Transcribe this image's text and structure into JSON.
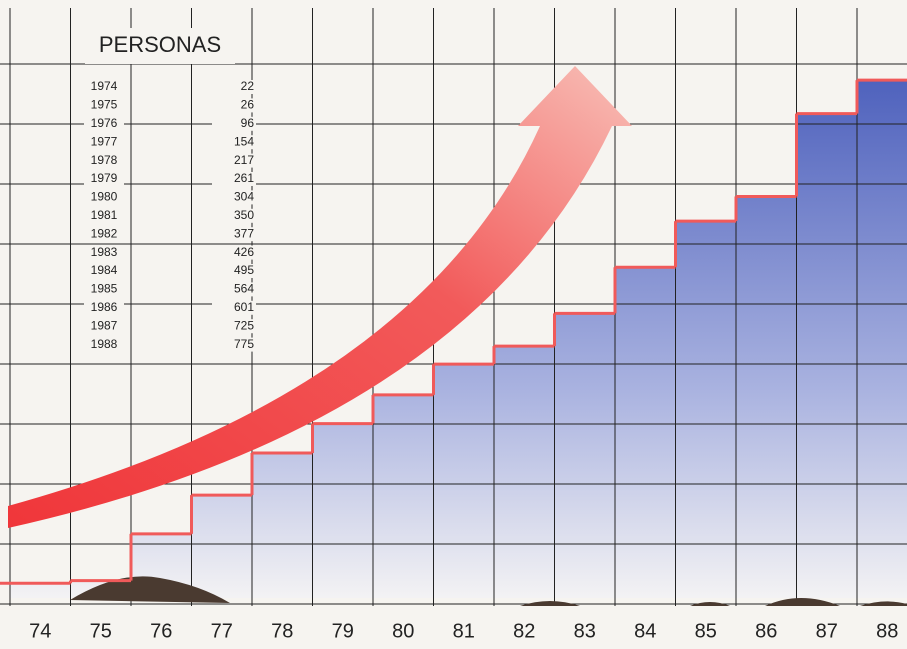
{
  "chart_data": {
    "type": "step",
    "title": "PERSONAS",
    "categories": [
      "74",
      "75",
      "76",
      "77",
      "78",
      "79",
      "80",
      "81",
      "82",
      "83",
      "84",
      "85",
      "86",
      "87",
      "88"
    ],
    "table_years": [
      "1974",
      "1975",
      "1976",
      "1977",
      "1978",
      "1979",
      "1980",
      "1981",
      "1982",
      "1983",
      "1984",
      "1985",
      "1986",
      "1987",
      "1988"
    ],
    "values": [
      22,
      26,
      96,
      154,
      217,
      261,
      304,
      350,
      377,
      426,
      495,
      564,
      601,
      725,
      775
    ],
    "ylim": [
      0,
      895
    ],
    "color": "#f05a5a",
    "fill": "#5a6cc4"
  }
}
